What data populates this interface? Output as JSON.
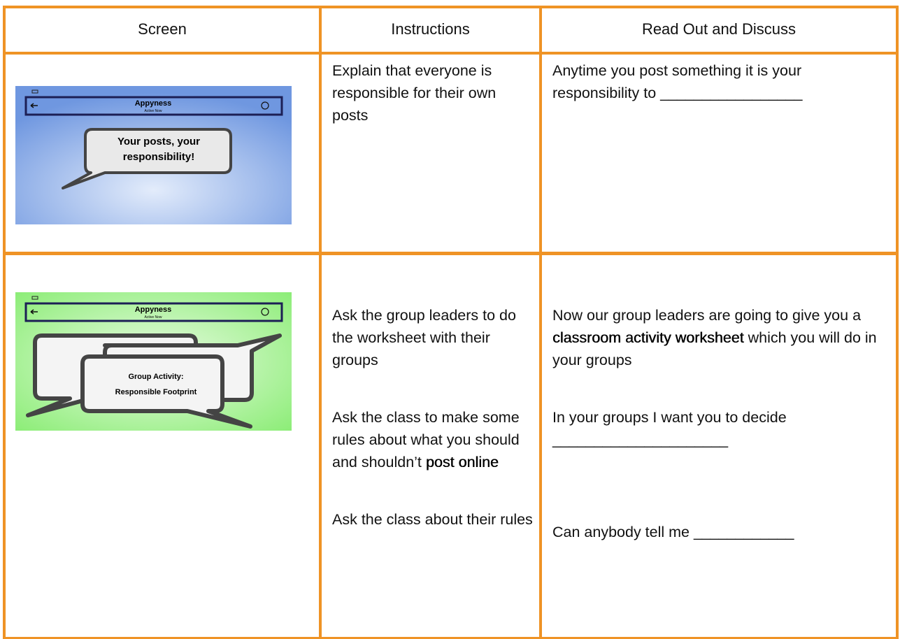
{
  "table": {
    "columns": [
      "Screen",
      "Instructions",
      "Read Out and Discuss"
    ],
    "rows": [
      {
        "screen": {
          "app": "Appyness",
          "status": "Active Now",
          "caption": [
            "Your posts, your",
            "responsibility!"
          ]
        },
        "instructions": [
          [
            {
              "text": "Explain that everyone is responsible for their own posts",
              "bold": false
            }
          ]
        ],
        "read_out": [
          [
            {
              "text": "Anytime you post something it is your responsibility to _________________",
              "bold": false
            }
          ]
        ]
      },
      {
        "screen": {
          "app": "Appyness",
          "status": "Active Now",
          "caption": [
            "Group Activity:",
            "Responsible Footprint"
          ]
        },
        "instructions": [
          [
            {
              "text": "Ask the group leaders to do the worksheet with their groups",
              "bold": false
            }
          ],
          [
            {
              "text": "Ask the class to make some rules about what you should and shouldn’t ",
              "bold": false
            },
            {
              "text": "post online",
              "bold": true
            }
          ],
          [
            {
              "text": "Ask the class about their rules",
              "bold": false
            }
          ]
        ],
        "read_out": [
          [
            {
              "text": "Now our group leaders are going to give you a ",
              "bold": false
            },
            {
              "text": "classroom activity worksheet",
              "bold": true
            },
            {
              "text": " which you will do in your groups",
              "bold": false
            }
          ],
          [
            {
              "text": "In your groups I want you to decide _____________________",
              "bold": false
            }
          ],
          [
            {
              "text": "Can anybody tell me ____________",
              "bold": false
            }
          ]
        ]
      }
    ]
  }
}
